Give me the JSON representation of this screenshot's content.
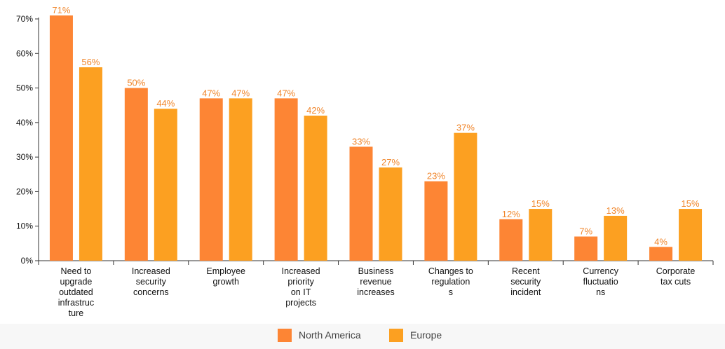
{
  "chart_data": {
    "type": "bar",
    "categories": [
      [
        "Need to",
        "upgrade",
        "outdated",
        "infrastruc",
        "ture"
      ],
      [
        "Increased",
        "security",
        "concerns"
      ],
      [
        "Employee",
        "growth"
      ],
      [
        "Increased",
        "priority",
        "on IT",
        "projects"
      ],
      [
        "Business",
        "revenue",
        "increases"
      ],
      [
        "Changes to",
        "regulation",
        "s"
      ],
      [
        "Recent",
        "security",
        "incident"
      ],
      [
        "Currency",
        "fluctuatio",
        "ns"
      ],
      [
        "Corporate",
        "tax cuts"
      ]
    ],
    "series": [
      {
        "name": "North America",
        "color": "#fd8534",
        "values": [
          71,
          50,
          47,
          47,
          33,
          23,
          12,
          7,
          4
        ],
        "labels": [
          "71%",
          "50%",
          "47%",
          "47%",
          "33%",
          "23%",
          "12%",
          "7%",
          "4%"
        ]
      },
      {
        "name": "Europe",
        "color": "#fca021",
        "values": [
          56,
          44,
          47,
          42,
          27,
          37,
          15,
          13,
          15
        ],
        "labels": [
          "56%",
          "44%",
          "47%",
          "42%",
          "27%",
          "37%",
          "15%",
          "13%",
          "15%"
        ]
      }
    ],
    "ylim": [
      0,
      70
    ],
    "yticks": [
      0,
      10,
      20,
      30,
      40,
      50,
      60,
      70
    ],
    "ytick_labels": [
      "0%",
      "10%",
      "20%",
      "30%",
      "40%",
      "50%",
      "60%",
      "70%"
    ],
    "label_color": "#f0852a",
    "legend_position": "bottom",
    "grid": false
  }
}
